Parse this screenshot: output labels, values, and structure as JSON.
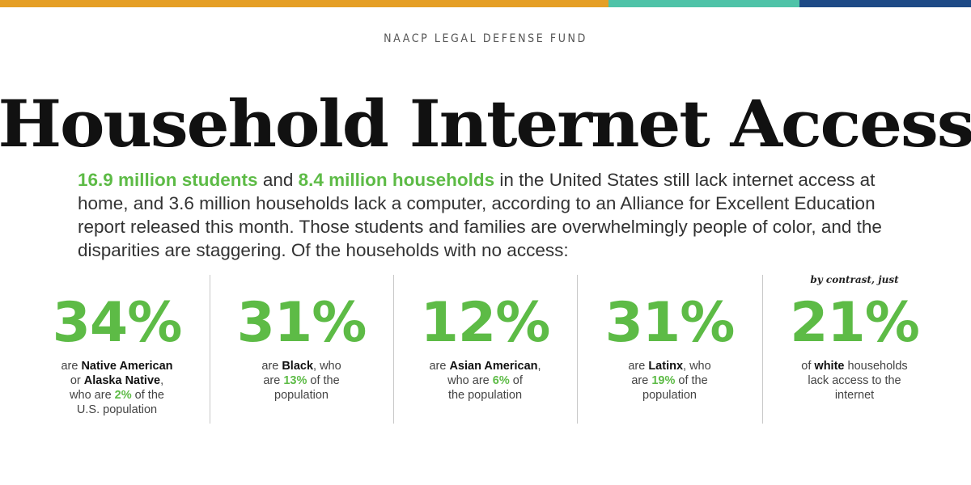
{
  "colors": {
    "bar_orange": "#e59f26",
    "bar_teal": "#4fc3a8",
    "bar_navy": "#1e4a86",
    "accent_green": "#5dbb46"
  },
  "header": {
    "org": "NAACP LEGAL DEFENSE FUND",
    "title": "Household Internet Access"
  },
  "intro": {
    "highlight_students": "16.9 million students",
    "text_and": " and ",
    "highlight_households": "8.4 million households",
    "text_rest": " in the United States still lack internet access at home, and 3.6 million households lack a computer, according to an Alliance for Excellent Education report released this month. Those students and families are overwhelmingly people of color, and the disparities are staggering. Of the households with no access:"
  },
  "contrast_note": "by contrast, just",
  "stats": [
    {
      "percent": "34%",
      "t1": "are ",
      "b1": "Native American",
      "t2": "or ",
      "b2": "Alaska Native",
      "t3": ",",
      "t4": "who are ",
      "g1": "2%",
      "t5": " of the",
      "t6": "U.S. population"
    },
    {
      "percent": "31%",
      "t1": "are ",
      "b1": "Black",
      "t2": ", who",
      "t3": "are ",
      "g1": "13%",
      "t4": " of the",
      "t5": "population"
    },
    {
      "percent": "12%",
      "t1": "are ",
      "b1": "Asian American",
      "t2": ",",
      "t3": "who are ",
      "g1": "6%",
      "t4": " of",
      "t5": "the population"
    },
    {
      "percent": "31%",
      "t1": "are ",
      "b1": "Latinx",
      "t2": ", who",
      "t3": "are ",
      "g1": "19%",
      "t4": " of the",
      "t5": "population"
    },
    {
      "percent": "21%",
      "t1": "of ",
      "b1": "white",
      "t2": " households",
      "t3": "lack access to the",
      "t4": "internet"
    }
  ]
}
